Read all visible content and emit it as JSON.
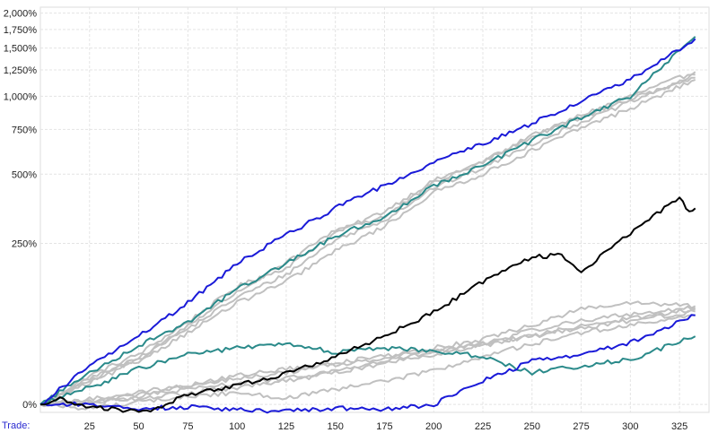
{
  "chart_data": {
    "type": "line",
    "x_axis_label": "Trade:",
    "xlim": [
      0,
      340
    ],
    "x_ticks": [
      25,
      50,
      75,
      100,
      125,
      150,
      175,
      200,
      225,
      250,
      275,
      300,
      325
    ],
    "x_tick_labels": [
      "25",
      "50",
      "75",
      "100",
      "125",
      "150",
      "175",
      "200",
      "225",
      "250",
      "275",
      "300",
      "325"
    ],
    "y_scale": "log(1 + return)",
    "ylim_percent": [
      -6,
      2100
    ],
    "y_ticks_percent": [
      0,
      250,
      500,
      750,
      1000,
      1250,
      1500,
      1750,
      2000
    ],
    "y_tick_labels": [
      "0%",
      "250%",
      "500%",
      "750%",
      "1,000%",
      "1,250%",
      "1,500%",
      "1,750%",
      "2,000%"
    ],
    "grid": true,
    "series": [
      {
        "color": "#c0c0c0",
        "width": 2,
        "x": [
          0,
          25,
          50,
          75,
          100,
          125,
          150,
          175,
          200,
          225,
          250,
          275,
          300,
          333
        ],
        "y": [
          0,
          25,
          48,
          90,
          150,
          190,
          280,
          350,
          470,
          560,
          700,
          850,
          1000,
          1230
        ]
      },
      {
        "color": "#c0c0c0",
        "width": 2,
        "x": [
          0,
          25,
          50,
          75,
          100,
          125,
          150,
          175,
          200,
          225,
          250,
          275,
          300,
          333
        ],
        "y": [
          0,
          20,
          45,
          80,
          130,
          175,
          260,
          320,
          440,
          530,
          660,
          800,
          950,
          1200
        ]
      },
      {
        "color": "#c0c0c0",
        "width": 2,
        "x": [
          0,
          25,
          50,
          75,
          100,
          125,
          150,
          175,
          200,
          225,
          250,
          275,
          300,
          333
        ],
        "y": [
          0,
          22,
          42,
          85,
          140,
          200,
          290,
          330,
          460,
          560,
          720,
          830,
          980,
          1170
        ]
      },
      {
        "color": "#c0c0c0",
        "width": 2,
        "x": [
          0,
          25,
          50,
          75,
          100,
          125,
          150,
          175,
          200,
          225,
          250,
          275,
          300,
          333
        ],
        "y": [
          0,
          18,
          40,
          75,
          120,
          160,
          230,
          300,
          420,
          500,
          620,
          760,
          900,
          1150
        ]
      },
      {
        "color": "#c0c0c0",
        "width": 2,
        "x": [
          0,
          25,
          50,
          75,
          100,
          125,
          150,
          175,
          200,
          225,
          250,
          275,
          300,
          333
        ],
        "y": [
          0,
          3,
          8,
          12,
          18,
          22,
          30,
          40,
          50,
          60,
          70,
          85,
          95,
          110
        ]
      },
      {
        "color": "#c0c0c0",
        "width": 2,
        "x": [
          0,
          25,
          50,
          75,
          100,
          125,
          150,
          175,
          200,
          225,
          250,
          275,
          300,
          333
        ],
        "y": [
          0,
          2,
          6,
          15,
          22,
          28,
          38,
          46,
          52,
          60,
          78,
          92,
          102,
          112
        ]
      },
      {
        "color": "#c0c0c0",
        "width": 2,
        "x": [
          0,
          25,
          50,
          75,
          100,
          125,
          150,
          175,
          200,
          225,
          250,
          275,
          300,
          333
        ],
        "y": [
          0,
          4,
          10,
          16,
          25,
          32,
          36,
          44,
          55,
          66,
          85,
          110,
          120,
          115
        ]
      },
      {
        "color": "#c0c0c0",
        "width": 2,
        "x": [
          0,
          25,
          50,
          75,
          100,
          125,
          150,
          175,
          200,
          225,
          250,
          275,
          300,
          333
        ],
        "y": [
          0,
          2,
          5,
          9,
          14,
          20,
          28,
          38,
          48,
          58,
          70,
          80,
          92,
          106
        ]
      },
      {
        "color": "#c0c0c0",
        "width": 2,
        "x": [
          0,
          25,
          50,
          75,
          100,
          125,
          150,
          175,
          200,
          225,
          250,
          275,
          300,
          333
        ],
        "y": [
          0,
          -3,
          2,
          6,
          10,
          5,
          12,
          20,
          30,
          45,
          60,
          75,
          85,
          100
        ]
      },
      {
        "color": "#2a8a8a",
        "width": 2,
        "x": [
          0,
          25,
          50,
          75,
          100,
          125,
          150,
          175,
          200,
          225,
          250,
          275,
          300,
          333
        ],
        "y": [
          0,
          28,
          58,
          90,
          145,
          200,
          270,
          330,
          450,
          540,
          680,
          830,
          1000,
          1650
        ]
      },
      {
        "color": "#2a8a8a",
        "width": 2,
        "x": [
          0,
          25,
          50,
          75,
          100,
          125,
          150,
          175,
          200,
          225,
          250,
          275,
          300,
          333
        ],
        "y": [
          0,
          14,
          32,
          48,
          55,
          60,
          50,
          55,
          52,
          45,
          28,
          35,
          42,
          70
        ]
      },
      {
        "color": "#1a1ad8",
        "width": 2,
        "x": [
          0,
          25,
          50,
          75,
          100,
          125,
          150,
          175,
          200,
          225,
          250,
          275,
          300,
          333
        ],
        "y": [
          0,
          35,
          70,
          120,
          200,
          275,
          360,
          450,
          560,
          660,
          790,
          960,
          1150,
          1620
        ]
      },
      {
        "color": "#1a1ad8",
        "width": 2,
        "x": [
          0,
          25,
          50,
          75,
          100,
          125,
          150,
          175,
          200,
          225,
          250,
          275,
          300,
          333
        ],
        "y": [
          0,
          0,
          -3,
          -2,
          -4,
          -5,
          -3,
          -4,
          0,
          20,
          40,
          48,
          62,
          100
        ]
      },
      {
        "color": "#000000",
        "width": 2,
        "x": [
          0,
          10,
          25,
          40,
          50,
          56,
          75,
          100,
          125,
          150,
          175,
          200,
          225,
          250,
          265,
          275,
          300,
          325,
          330,
          333
        ],
        "y": [
          0,
          4,
          -2,
          -4,
          -6,
          -5,
          8,
          16,
          27,
          45,
          70,
          105,
          160,
          215,
          220,
          180,
          280,
          400,
          345,
          360
        ]
      }
    ]
  }
}
